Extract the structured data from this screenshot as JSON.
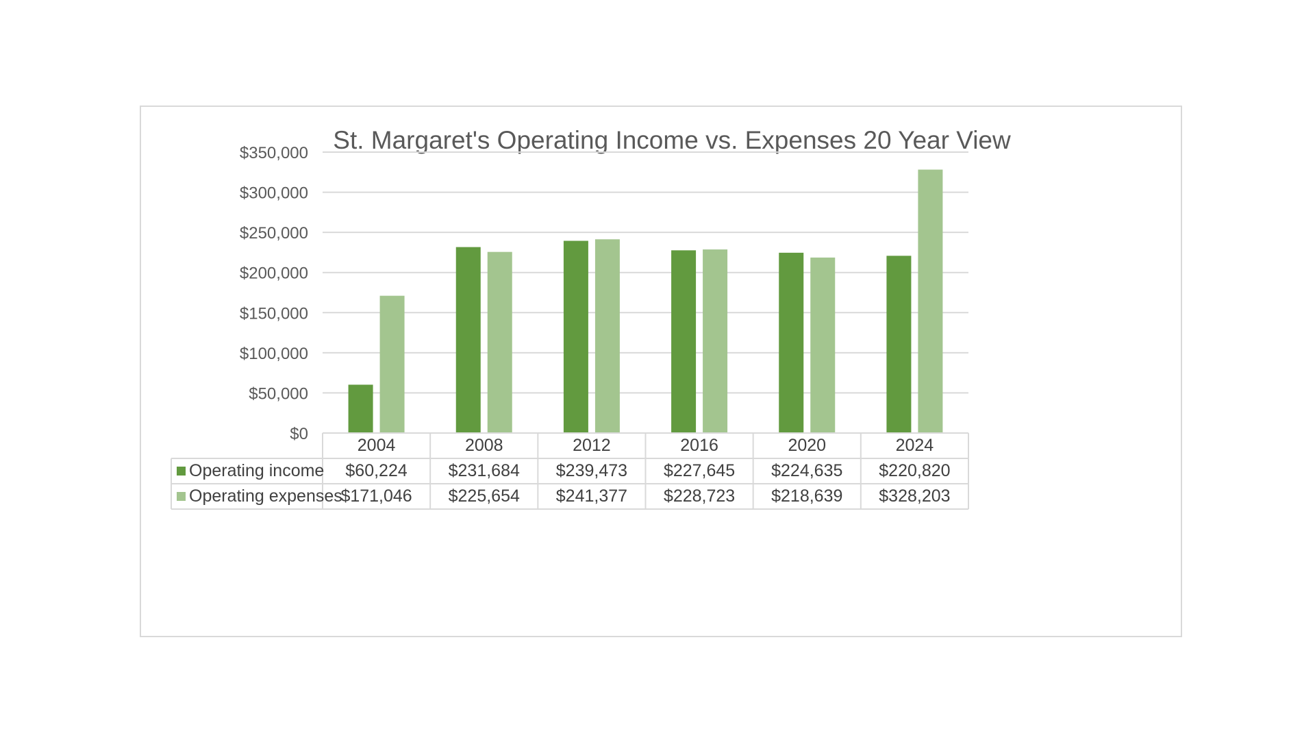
{
  "chart_data": {
    "type": "bar",
    "title": "St. Margaret's Operating Income vs. Expenses 20 Year View",
    "xlabel": "",
    "ylabel": "",
    "categories": [
      "2004",
      "2008",
      "2012",
      "2016",
      "2020",
      "2024"
    ],
    "series": [
      {
        "name": "Operating income",
        "values": [
          60224,
          231684,
          239473,
          227645,
          224635,
          220820
        ],
        "labels": [
          "$60,224",
          "$231,684",
          "$239,473",
          "$227,645",
          "$224,635",
          "$220,820"
        ],
        "color": "#629a3f"
      },
      {
        "name": "Operating expenses",
        "values": [
          171046,
          225654,
          241377,
          228723,
          218639,
          328203
        ],
        "labels": [
          "$171,046",
          "$225,654",
          "$241,377",
          "$228,723",
          "$218,639",
          "$328,203"
        ],
        "color": "#a3c58f"
      }
    ],
    "ylim": [
      0,
      350000
    ],
    "yticks": [
      0,
      50000,
      100000,
      150000,
      200000,
      250000,
      300000,
      350000
    ],
    "ytick_labels": [
      "$0",
      "$50,000",
      "$100,000",
      "$150,000",
      "$200,000",
      "$250,000",
      "$300,000",
      "$350,000"
    ],
    "grid": true,
    "legend": "data-table",
    "data_table": true
  }
}
